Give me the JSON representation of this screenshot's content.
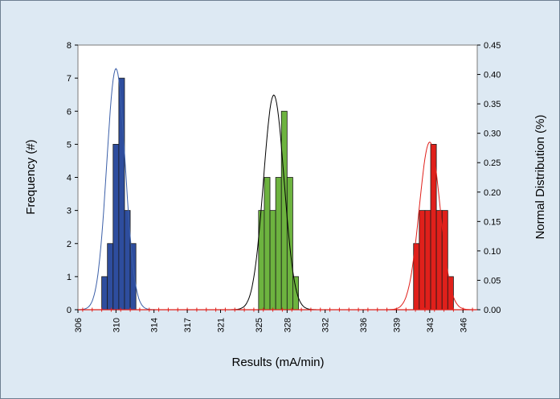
{
  "chart_data": {
    "type": "bar",
    "title": "",
    "xlabel": "Results (mA/min)",
    "ylabel": "Frequency (#)",
    "y2label": "Normal Distribution (%)",
    "ylim": [
      0,
      8
    ],
    "y2lim": [
      0,
      0.45
    ],
    "xlim": [
      306,
      348
    ],
    "yticks": [
      "0",
      "1",
      "2",
      "3",
      "4",
      "5",
      "6",
      "7",
      "8"
    ],
    "y2ticks": [
      "0.00",
      "0.05",
      "0.10",
      "0.15",
      "0.20",
      "0.25",
      "0.30",
      "0.35",
      "0.40",
      "0.45"
    ],
    "xticks": [
      "306",
      "310",
      "314",
      "317",
      "321",
      "325",
      "328",
      "332",
      "336",
      "339",
      "343",
      "346"
    ],
    "xtick_values": [
      306,
      310,
      314,
      317.5,
      321,
      325,
      328,
      332,
      336,
      339.5,
      343,
      346.5
    ],
    "grid": false,
    "series": [
      {
        "color": "#2e4d9e",
        "curve_color": "#3b5fa8",
        "bins": [
          [
            308.5,
            1
          ],
          [
            309.1,
            2
          ],
          [
            309.7,
            5
          ],
          [
            310.3,
            7
          ],
          [
            310.9,
            3
          ],
          [
            311.5,
            2
          ]
        ],
        "bin_width": 0.6,
        "curve": {
          "mean": 310.0,
          "sd": 0.97,
          "peak": 0.41
        }
      },
      {
        "color": "#6db33f",
        "curve_color": "#000000",
        "bins": [
          [
            325.0,
            3
          ],
          [
            325.6,
            4
          ],
          [
            326.2,
            3
          ],
          [
            326.8,
            4
          ],
          [
            327.4,
            6
          ],
          [
            328.0,
            4
          ],
          [
            328.6,
            1
          ]
        ],
        "bin_width": 0.6,
        "curve": {
          "mean": 326.6,
          "sd": 1.08,
          "peak": 0.365
        }
      },
      {
        "color": "#e0201b",
        "curve_color": "#e0201b",
        "bins": [
          [
            341.3,
            2
          ],
          [
            341.9,
            3
          ],
          [
            342.5,
            3
          ],
          [
            343.1,
            5
          ],
          [
            343.7,
            3
          ],
          [
            344.3,
            3
          ],
          [
            344.9,
            1
          ]
        ],
        "bin_width": 0.6,
        "curve": {
          "mean": 343.0,
          "sd": 1.1,
          "peak": 0.285
        }
      }
    ]
  }
}
